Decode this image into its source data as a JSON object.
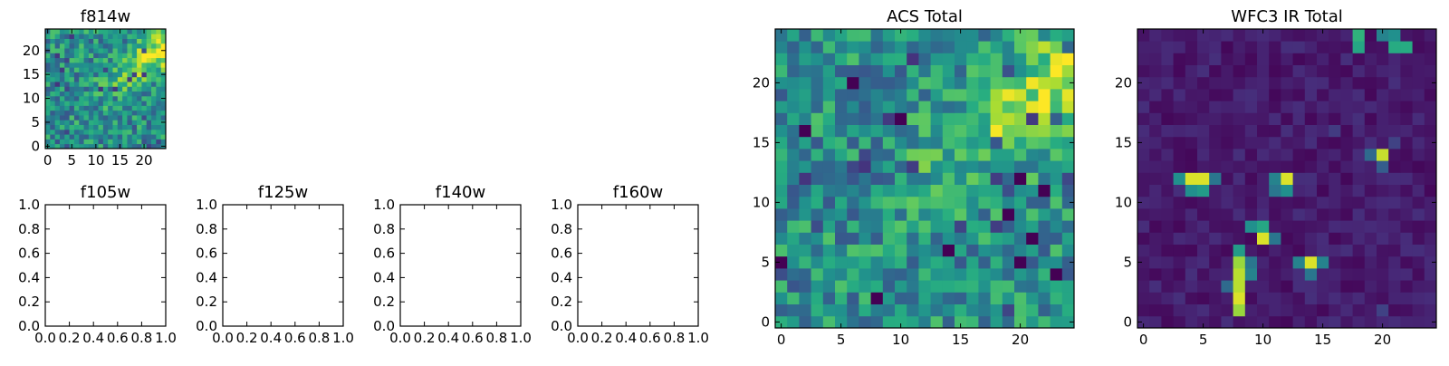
{
  "chart_data": [
    {
      "type": "heatmap",
      "title": "f814w",
      "colormap": "viridis",
      "image_size": [
        25,
        25
      ],
      "xticks": [
        "0",
        "5",
        "10",
        "15",
        "20"
      ],
      "yticks": [
        "0",
        "5",
        "10",
        "15",
        "20"
      ],
      "xlim": [
        -0.5,
        24.5
      ],
      "ylim": [
        -0.5,
        24.5
      ],
      "pattern": "noise with bright diagonal band toward upper right"
    },
    {
      "type": "empty",
      "title": "f105w",
      "xticks": [
        "0.0",
        "0.2",
        "0.4",
        "0.6",
        "0.8",
        "1.0"
      ],
      "yticks": [
        "0.0",
        "0.2",
        "0.4",
        "0.6",
        "0.8",
        "1.0"
      ],
      "xlim": [
        0,
        1
      ],
      "ylim": [
        0,
        1
      ]
    },
    {
      "type": "empty",
      "title": "f125w",
      "xticks": [
        "0.0",
        "0.2",
        "0.4",
        "0.6",
        "0.8",
        "1.0"
      ],
      "yticks": [
        "0.0",
        "0.2",
        "0.4",
        "0.6",
        "0.8",
        "1.0"
      ],
      "xlim": [
        0,
        1
      ],
      "ylim": [
        0,
        1
      ]
    },
    {
      "type": "empty",
      "title": "f140w",
      "xticks": [
        "0.0",
        "0.2",
        "0.4",
        "0.6",
        "0.8",
        "1.0"
      ],
      "yticks": [
        "0.0",
        "0.2",
        "0.4",
        "0.6",
        "0.8",
        "1.0"
      ],
      "xlim": [
        0,
        1
      ],
      "ylim": [
        0,
        1
      ]
    },
    {
      "type": "empty",
      "title": "f160w",
      "xticks": [
        "0.0",
        "0.2",
        "0.4",
        "0.6",
        "0.8",
        "1.0"
      ],
      "yticks": [
        "0.0",
        "0.2",
        "0.4",
        "0.6",
        "0.8",
        "1.0"
      ],
      "xlim": [
        0,
        1
      ],
      "ylim": [
        0,
        1
      ]
    },
    {
      "type": "heatmap",
      "title": "ACS Total",
      "colormap": "viridis",
      "image_size": [
        25,
        25
      ],
      "xticks": [
        "0",
        "5",
        "10",
        "15",
        "20"
      ],
      "yticks": [
        "0",
        "5",
        "10",
        "15",
        "20"
      ],
      "xlim": [
        -0.5,
        24.5
      ],
      "ylim": [
        -0.5,
        24.5
      ],
      "pattern": "noise with bright diagonal band toward upper right",
      "dark_pixels": [
        [
          20,
          12
        ],
        [
          22,
          11
        ],
        [
          19,
          9
        ],
        [
          21,
          7
        ],
        [
          20,
          5
        ],
        [
          23,
          4
        ],
        [
          2,
          16
        ],
        [
          6,
          20
        ],
        [
          10,
          17
        ],
        [
          0,
          5
        ],
        [
          14,
          6
        ],
        [
          8,
          2
        ]
      ]
    },
    {
      "type": "heatmap",
      "title": "WFC3 IR Total",
      "colormap": "viridis",
      "image_size": [
        25,
        25
      ],
      "xticks": [
        "0",
        "5",
        "10",
        "15",
        "20"
      ],
      "yticks": [
        "0",
        "5",
        "10",
        "15",
        "20"
      ],
      "xlim": [
        -0.5,
        24.5
      ],
      "ylim": [
        -0.5,
        24.5
      ],
      "pattern": "dark background with a few bright compact sources",
      "hot_pixels": [
        {
          "x": 18,
          "y": 24,
          "v": 0.65
        },
        {
          "x": 18,
          "y": 23,
          "v": 0.6
        },
        {
          "x": 21,
          "y": 24,
          "v": 0.5
        },
        {
          "x": 21,
          "y": 23,
          "v": 0.62
        },
        {
          "x": 22,
          "y": 23,
          "v": 0.62
        },
        {
          "x": 20,
          "y": 24,
          "v": 0.45
        },
        {
          "x": 20,
          "y": 14,
          "v": 0.92
        },
        {
          "x": 19,
          "y": 14,
          "v": 0.35
        },
        {
          "x": 20,
          "y": 13,
          "v": 0.3
        },
        {
          "x": 3,
          "y": 12,
          "v": 0.5
        },
        {
          "x": 4,
          "y": 12,
          "v": 0.95
        },
        {
          "x": 5,
          "y": 12,
          "v": 0.95
        },
        {
          "x": 6,
          "y": 12,
          "v": 0.4
        },
        {
          "x": 4,
          "y": 11,
          "v": 0.5
        },
        {
          "x": 5,
          "y": 11,
          "v": 0.55
        },
        {
          "x": 11,
          "y": 12,
          "v": 0.45
        },
        {
          "x": 12,
          "y": 12,
          "v": 0.95
        },
        {
          "x": 11,
          "y": 11,
          "v": 0.4
        },
        {
          "x": 12,
          "y": 11,
          "v": 0.5
        },
        {
          "x": 9,
          "y": 8,
          "v": 0.5
        },
        {
          "x": 10,
          "y": 8,
          "v": 0.6
        },
        {
          "x": 10,
          "y": 7,
          "v": 0.95
        },
        {
          "x": 11,
          "y": 7,
          "v": 0.4
        },
        {
          "x": 8,
          "y": 6,
          "v": 0.55
        },
        {
          "x": 8,
          "y": 5,
          "v": 0.85
        },
        {
          "x": 8,
          "y": 4,
          "v": 0.9
        },
        {
          "x": 8,
          "y": 3,
          "v": 0.9
        },
        {
          "x": 8,
          "y": 2,
          "v": 0.95
        },
        {
          "x": 8,
          "y": 1,
          "v": 0.85
        },
        {
          "x": 9,
          "y": 5,
          "v": 0.4
        },
        {
          "x": 9,
          "y": 4,
          "v": 0.45
        },
        {
          "x": 7,
          "y": 3,
          "v": 0.35
        },
        {
          "x": 13,
          "y": 5,
          "v": 0.45
        },
        {
          "x": 14,
          "y": 5,
          "v": 0.95
        },
        {
          "x": 15,
          "y": 5,
          "v": 0.45
        },
        {
          "x": 14,
          "y": 4,
          "v": 0.4
        },
        {
          "x": 20,
          "y": 1,
          "v": 0.2
        },
        {
          "x": 21,
          "y": 15,
          "v": 0.2
        },
        {
          "x": 16,
          "y": 16,
          "v": 0.18
        }
      ]
    }
  ]
}
